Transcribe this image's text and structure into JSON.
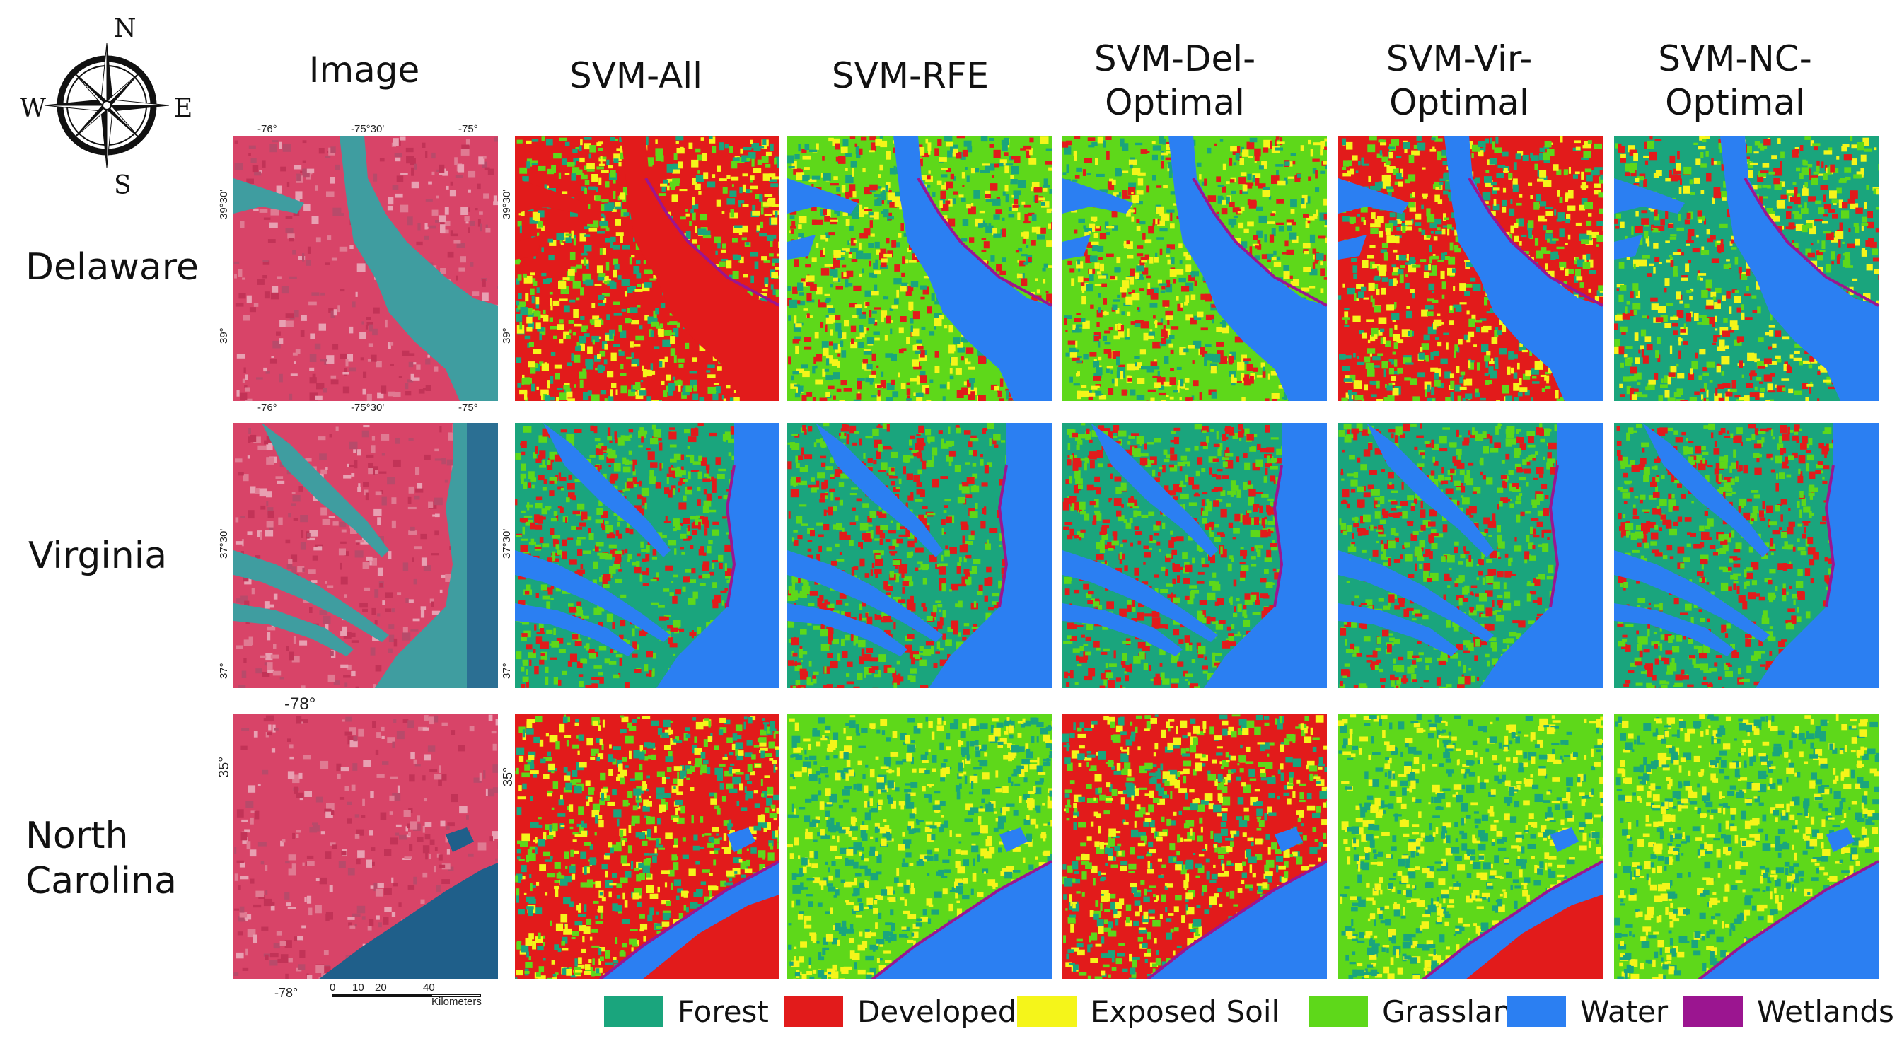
{
  "compass": {
    "n": "N",
    "e": "E",
    "s": "S",
    "w": "W"
  },
  "columns": [
    "Image",
    "SVM-All",
    "SVM-RFE",
    "SVM-Del-\nOptimal",
    "SVM-Vir-\nOptimal",
    "SVM-NC-\nOptimal"
  ],
  "rows": [
    "Delaware",
    "Virginia",
    "North\nCarolina"
  ],
  "coords": {
    "de_top": [
      "-76°",
      "-75°30'",
      "-75°"
    ],
    "de_bottom": [
      "-76°",
      "-75°30'",
      "-75°"
    ],
    "de_left": [
      "39°30'",
      "39°"
    ],
    "de_right": [
      "39°30'",
      "39°"
    ],
    "va_left": [
      "37°30'",
      "37°"
    ],
    "va_right": [
      "37°30'",
      "37°"
    ],
    "nc_top": "-78°",
    "nc_bottom": "-78°",
    "nc_left": "35°",
    "nc_right": "35°"
  },
  "scalebar": {
    "ticks": [
      "0",
      "10",
      "20",
      "40"
    ],
    "unit": "Kilometers"
  },
  "legend": [
    {
      "label": "Forest",
      "color": "#1aa57d"
    },
    {
      "label": "Developed",
      "color": "#e21b1b"
    },
    {
      "label": "Exposed Soil",
      "color": "#f5f51a"
    },
    {
      "label": "Grassland",
      "color": "#5ed81a"
    },
    {
      "label": "Water",
      "color": "#2b7ff2"
    },
    {
      "label": "Wetlands",
      "color": "#9b1590"
    }
  ],
  "colors": {
    "satellite_red": "#d84468",
    "satellite_water": "#3f9da0",
    "ocean": "#1f5f8a"
  }
}
